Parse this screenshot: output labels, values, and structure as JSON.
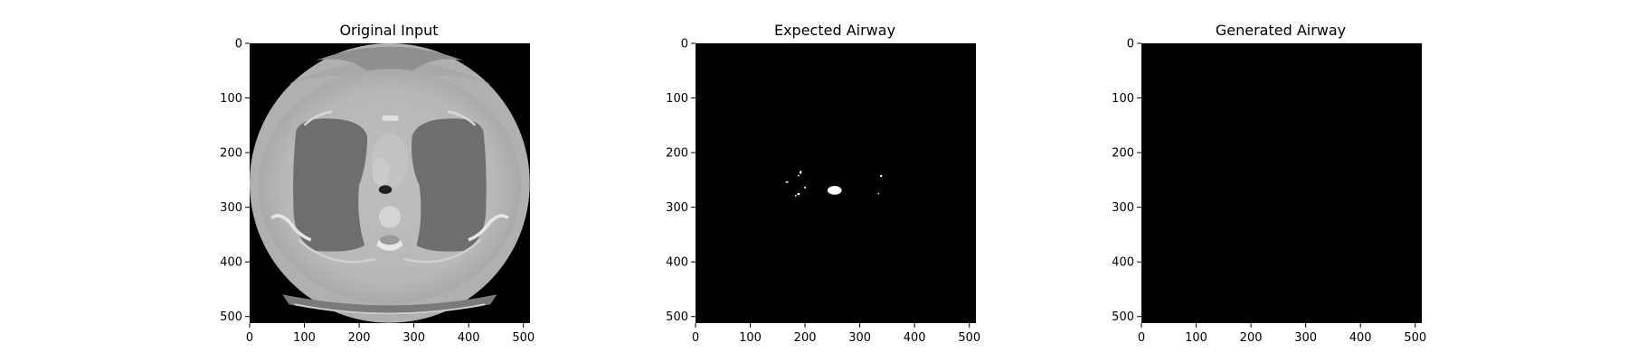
{
  "figure": {
    "background": "#ffffff"
  },
  "chart_data": [
    {
      "type": "image",
      "title": "Original Input",
      "xlim": [
        0,
        512
      ],
      "ylim": [
        512,
        0
      ],
      "xticks": [
        0,
        100,
        200,
        300,
        400,
        500
      ],
      "yticks": [
        0,
        100,
        200,
        300,
        400,
        500
      ],
      "content": "ct-axial-chest-slice",
      "colormap": "gray"
    },
    {
      "type": "image",
      "title": "Expected Airway",
      "xlim": [
        0,
        512
      ],
      "ylim": [
        512,
        0
      ],
      "xticks": [
        0,
        100,
        200,
        300,
        400,
        500
      ],
      "yticks": [
        0,
        100,
        200,
        300,
        400,
        500
      ],
      "content": "binary-mask",
      "colormap": "gray",
      "mask_regions": [
        {
          "x": 254,
          "y": 269,
          "rx": 13,
          "ry": 8
        },
        {
          "x": 192,
          "y": 236,
          "rx": 2,
          "ry": 3
        },
        {
          "x": 188,
          "y": 242,
          "rx": 1.5,
          "ry": 1.5
        },
        {
          "x": 167,
          "y": 254,
          "rx": 3,
          "ry": 1.2
        },
        {
          "x": 200,
          "y": 264,
          "rx": 2,
          "ry": 1.5
        },
        {
          "x": 188,
          "y": 276,
          "rx": 2.5,
          "ry": 2
        },
        {
          "x": 183,
          "y": 279,
          "rx": 1.5,
          "ry": 1.5
        },
        {
          "x": 339,
          "y": 243,
          "rx": 2,
          "ry": 2
        },
        {
          "x": 334,
          "y": 275,
          "rx": 1,
          "ry": 1.5
        }
      ]
    },
    {
      "type": "image",
      "title": "Generated Airway",
      "xlim": [
        0,
        512
      ],
      "ylim": [
        512,
        0
      ],
      "xticks": [
        0,
        100,
        200,
        300,
        400,
        500
      ],
      "yticks": [
        0,
        100,
        200,
        300,
        400,
        500
      ],
      "content": "empty-mask",
      "colormap": "gray",
      "mask_regions": []
    }
  ]
}
